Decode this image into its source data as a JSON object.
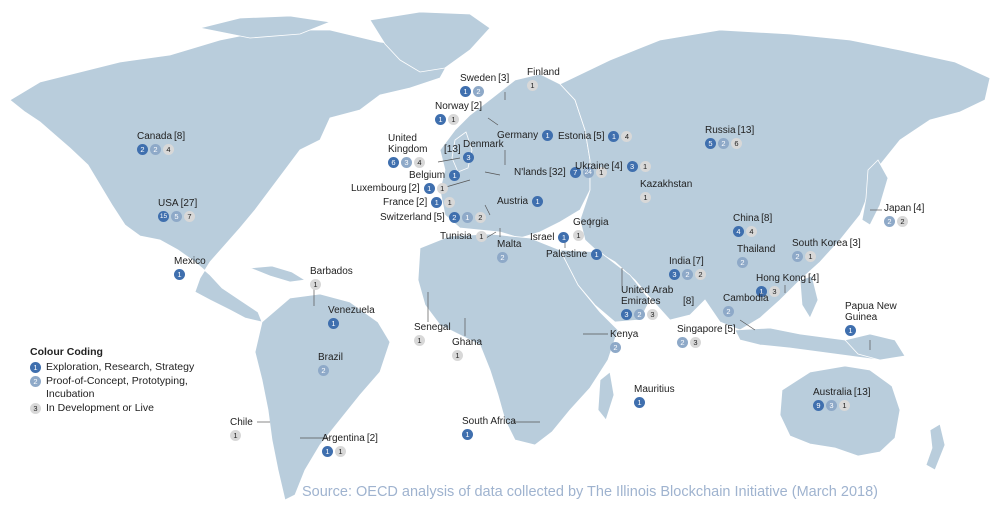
{
  "source": "Source: OECD analysis of data collected by The Illinois Blockchain Initiative (March 2018)",
  "legend": {
    "title": "Colour Coding",
    "items": [
      {
        "key": "1",
        "label": "Exploration, Research, Strategy",
        "color": "#3f6fae"
      },
      {
        "key": "2",
        "label": "Proof-of-Concept, Prototyping, Incubation",
        "color": "#8ea9c8"
      },
      {
        "key": "3",
        "label": "In Development or Live",
        "color": "#d8d8d8"
      }
    ]
  },
  "countries": [
    {
      "id": "canada",
      "name": "Canada",
      "count": "[8]",
      "values": [
        2,
        2,
        4
      ]
    },
    {
      "id": "usa",
      "name": "USA",
      "count": "[27]",
      "values": [
        15,
        5,
        7
      ]
    },
    {
      "id": "mexico",
      "name": "Mexico",
      "count": "",
      "values": [
        1,
        0,
        0
      ]
    },
    {
      "id": "barbados",
      "name": "Barbados",
      "count": "",
      "values": [
        0,
        0,
        1
      ]
    },
    {
      "id": "venezuela",
      "name": "Venezuela",
      "count": "",
      "values": [
        1,
        0,
        0
      ]
    },
    {
      "id": "brazil",
      "name": "Brazil",
      "count": "",
      "values": [
        0,
        2,
        0
      ]
    },
    {
      "id": "chile",
      "name": "Chile",
      "count": "",
      "values": [
        0,
        0,
        1
      ]
    },
    {
      "id": "argentina",
      "name": "Argentina",
      "count": "[2]",
      "values": [
        1,
        0,
        1
      ]
    },
    {
      "id": "sweden",
      "name": "Sweden",
      "count": "[3]",
      "values": [
        1,
        2,
        0
      ]
    },
    {
      "id": "finland",
      "name": "Finland",
      "count": "",
      "values": [
        0,
        0,
        1
      ]
    },
    {
      "id": "norway",
      "name": "Norway",
      "count": "[2]",
      "values": [
        1,
        0,
        1
      ]
    },
    {
      "id": "uk",
      "name": "United Kingdom",
      "count": "[13]",
      "values": [
        6,
        3,
        4
      ]
    },
    {
      "id": "germany",
      "name": "Germany",
      "count": "",
      "values": [
        1,
        0,
        0
      ]
    },
    {
      "id": "estonia",
      "name": "Estonia",
      "count": "[5]",
      "values": [
        1,
        0,
        4
      ]
    },
    {
      "id": "denmark",
      "name": "Denmark",
      "count": "",
      "values": [
        3,
        0,
        0
      ]
    },
    {
      "id": "belgium",
      "name": "Belgium",
      "count": "",
      "values": [
        1,
        0,
        0
      ]
    },
    {
      "id": "netherlands",
      "name": "N'lands",
      "count": "[32]",
      "values": [
        7,
        24,
        1
      ]
    },
    {
      "id": "luxembourg",
      "name": "Luxembourg",
      "count": "[2]",
      "values": [
        1,
        0,
        1
      ]
    },
    {
      "id": "france",
      "name": "France",
      "count": "[2]",
      "values": [
        1,
        0,
        1
      ]
    },
    {
      "id": "austria",
      "name": "Austria",
      "count": "",
      "values": [
        1,
        0,
        0
      ]
    },
    {
      "id": "switzerland",
      "name": "Switzerland",
      "count": "[5]",
      "values": [
        2,
        1,
        2
      ]
    },
    {
      "id": "ukraine",
      "name": "Ukraine",
      "count": "[4]",
      "values": [
        3,
        0,
        1
      ]
    },
    {
      "id": "tunisia",
      "name": "Tunisia",
      "count": "",
      "values": [
        0,
        0,
        1
      ]
    },
    {
      "id": "malta",
      "name": "Malta",
      "count": "",
      "values": [
        0,
        2,
        0
      ]
    },
    {
      "id": "israel",
      "name": "Israel",
      "count": "",
      "values": [
        1,
        0,
        0
      ]
    },
    {
      "id": "palestine",
      "name": "Palestine",
      "count": "",
      "values": [
        1,
        0,
        0
      ]
    },
    {
      "id": "georgia",
      "name": "Georgia",
      "count": "",
      "values": [
        0,
        0,
        1
      ]
    },
    {
      "id": "russia",
      "name": "Russia",
      "count": "[13]",
      "values": [
        5,
        2,
        6
      ]
    },
    {
      "id": "kazakhstan",
      "name": "Kazakhstan",
      "count": "",
      "values": [
        0,
        0,
        1
      ]
    },
    {
      "id": "china",
      "name": "China",
      "count": "[8]",
      "values": [
        4,
        0,
        4
      ]
    },
    {
      "id": "japan",
      "name": "Japan",
      "count": "[4]",
      "values": [
        0,
        2,
        2
      ]
    },
    {
      "id": "southkorea",
      "name": "South Korea",
      "count": "[3]",
      "values": [
        0,
        2,
        1
      ]
    },
    {
      "id": "india",
      "name": "India",
      "count": "[7]",
      "values": [
        3,
        2,
        2
      ]
    },
    {
      "id": "thailand",
      "name": "Thailand",
      "count": "",
      "values": [
        0,
        2,
        0
      ]
    },
    {
      "id": "hongkong",
      "name": "Hong Kong",
      "count": "[4]",
      "values": [
        1,
        0,
        3
      ]
    },
    {
      "id": "uae",
      "name": "United Arab Emirates",
      "count": "[8]",
      "values": [
        3,
        2,
        3
      ]
    },
    {
      "id": "cambodia",
      "name": "Cambodia",
      "count": "",
      "values": [
        0,
        2,
        0
      ]
    },
    {
      "id": "singapore",
      "name": "Singapore",
      "count": "[5]",
      "values": [
        0,
        2,
        3
      ]
    },
    {
      "id": "png",
      "name": "Papua New Guinea",
      "count": "",
      "values": [
        1,
        0,
        0
      ]
    },
    {
      "id": "senegal",
      "name": "Senegal",
      "count": "",
      "values": [
        0,
        0,
        1
      ]
    },
    {
      "id": "ghana",
      "name": "Ghana",
      "count": "",
      "values": [
        0,
        0,
        1
      ]
    },
    {
      "id": "kenya",
      "name": "Kenya",
      "count": "",
      "values": [
        0,
        2,
        0
      ]
    },
    {
      "id": "mauritius",
      "name": "Mauritius",
      "count": "",
      "values": [
        1,
        0,
        0
      ]
    },
    {
      "id": "southafrica",
      "name": "South Africa",
      "count": "",
      "values": [
        1,
        0,
        0
      ]
    },
    {
      "id": "australia",
      "name": "Australia",
      "count": "[13]",
      "values": [
        9,
        3,
        1
      ]
    }
  ]
}
